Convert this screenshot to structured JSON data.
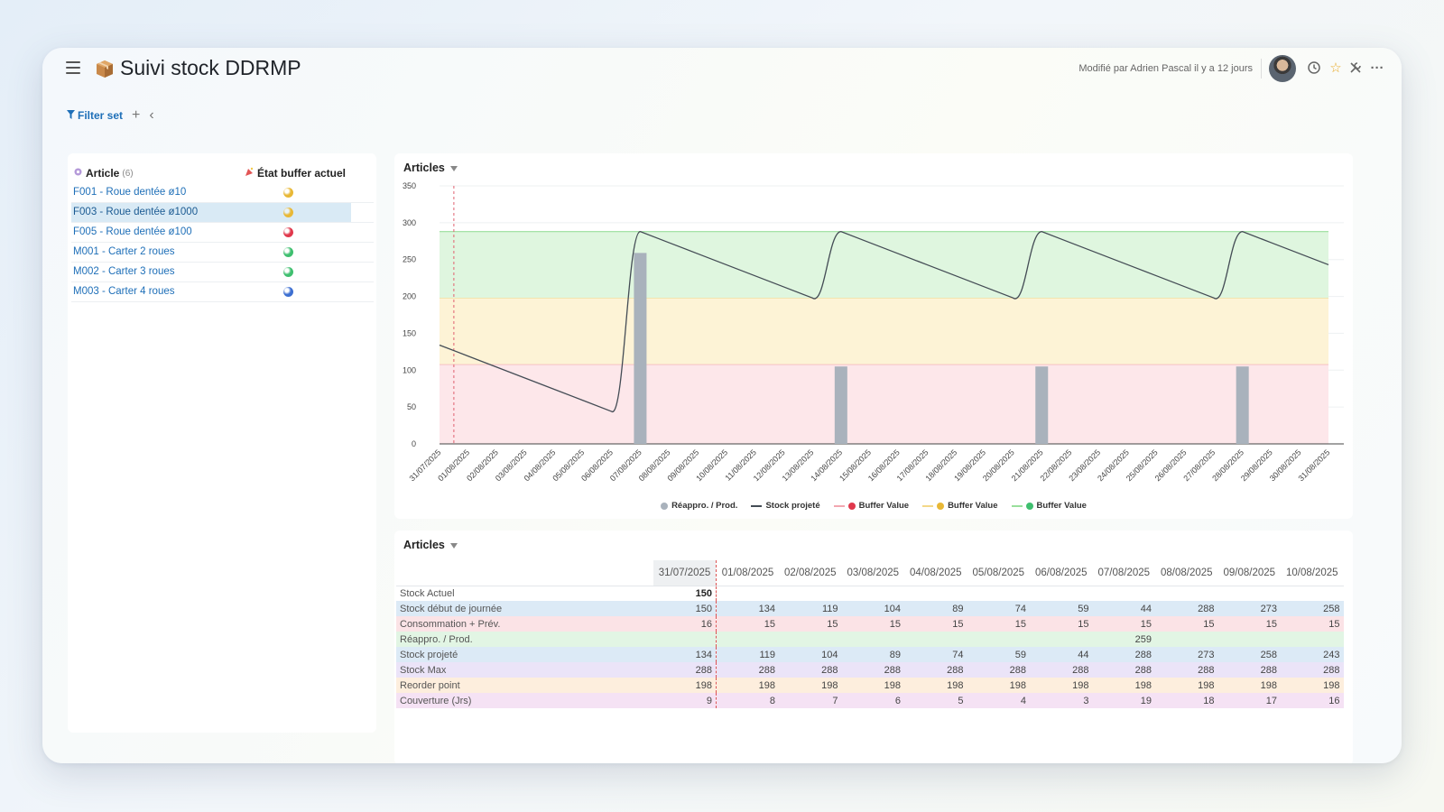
{
  "header": {
    "title": "Suivi stock DDRMP",
    "modified_text": "Modifié par Adrien Pascal il y a 12 jours"
  },
  "filterbar": {
    "label": "Filter set"
  },
  "articles_panel": {
    "col_article": "Article",
    "count": "(6)",
    "col_state": "État buffer actuel",
    "rows": [
      {
        "label": "F001 - Roue dentée ø10",
        "state_color": "#e8b836"
      },
      {
        "label": "F003 - Roue dentée ø1000",
        "state_color": "#e8b836"
      },
      {
        "label": "F005 - Roue dentée ø100",
        "state_color": "#e0384c"
      },
      {
        "label": "M001 - Carter 2 roues",
        "state_color": "#3fbf6f"
      },
      {
        "label": "M002 - Carter 3 roues",
        "state_color": "#3fbf6f"
      },
      {
        "label": "M003 - Carter 4 roues",
        "state_color": "#3d6fd1"
      }
    ]
  },
  "chart_panel": {
    "title": "Articles"
  },
  "table_panel": {
    "title": "Articles"
  },
  "legend": {
    "reappro": "Réappro. / Prod.",
    "stock": "Stock projeté",
    "buffer_red": "Buffer Value",
    "buffer_yellow": "Buffer Value",
    "buffer_green": "Buffer Value"
  },
  "chart_data": {
    "type": "bar",
    "title": "Articles",
    "ylim": [
      0,
      350
    ],
    "yticks": [
      0,
      50,
      100,
      150,
      200,
      250,
      300,
      350
    ],
    "categories": [
      "31/07/2025",
      "01/08/2025",
      "02/08/2025",
      "03/08/2025",
      "04/08/2025",
      "05/08/2025",
      "06/08/2025",
      "07/08/2025",
      "08/08/2025",
      "09/08/2025",
      "10/08/2025",
      "11/08/2025",
      "12/08/2025",
      "13/08/2025",
      "14/08/2025",
      "15/08/2025",
      "16/08/2025",
      "17/08/2025",
      "18/08/2025",
      "19/08/2025",
      "20/08/2025",
      "21/08/2025",
      "22/08/2025",
      "23/08/2025",
      "24/08/2025",
      "25/08/2025",
      "26/08/2025",
      "27/08/2025",
      "28/08/2025",
      "29/08/2025",
      "30/08/2025",
      "31/08/2025"
    ],
    "series": [
      {
        "name": "Réappro. / Prod.",
        "type": "bar",
        "color": "#a9b2bc",
        "values": [
          0,
          0,
          0,
          0,
          0,
          0,
          0,
          259,
          0,
          0,
          0,
          0,
          0,
          0,
          105,
          0,
          0,
          0,
          0,
          0,
          0,
          105,
          0,
          0,
          0,
          0,
          0,
          0,
          105,
          0,
          0,
          0
        ]
      },
      {
        "name": "Stock projeté",
        "type": "line",
        "color": "#444c55",
        "values": [
          134,
          119,
          104,
          89,
          74,
          59,
          44,
          288,
          273,
          258,
          243,
          228,
          213,
          198,
          288,
          273,
          258,
          243,
          228,
          213,
          198,
          288,
          273,
          258,
          243,
          228,
          213,
          198,
          288,
          273,
          258,
          243
        ]
      }
    ],
    "bands": [
      {
        "name": "Buffer Value",
        "from": 0,
        "to": 108,
        "color": "#fde7ea",
        "edge": "#f2a7b0"
      },
      {
        "name": "Buffer Value",
        "from": 108,
        "to": 198,
        "color": "#fdf3d6",
        "edge": "#f3d889"
      },
      {
        "name": "Buffer Value",
        "from": 198,
        "to": 288,
        "color": "#dff6df",
        "edge": "#9adf9c"
      }
    ],
    "today_index": 0.5
  },
  "table": {
    "dates": [
      "31/07/2025",
      "01/08/2025",
      "02/08/2025",
      "03/08/2025",
      "04/08/2025",
      "05/08/2025",
      "06/08/2025",
      "07/08/2025",
      "08/08/2025",
      "09/08/2025",
      "10/08/2025"
    ],
    "rows": [
      {
        "label": "Stock Actuel",
        "cls": "row-white",
        "values": [
          "150",
          "",
          "",
          "",
          "",
          "",
          "",
          "",
          "",
          "",
          ""
        ]
      },
      {
        "label": "Stock début de journée",
        "cls": "row-blue",
        "values": [
          "150",
          "134",
          "119",
          "104",
          "89",
          "74",
          "59",
          "44",
          "288",
          "273",
          "258"
        ]
      },
      {
        "label": "Consommation + Prév.",
        "cls": "row-red",
        "values": [
          "16",
          "15",
          "15",
          "15",
          "15",
          "15",
          "15",
          "15",
          "15",
          "15",
          "15"
        ]
      },
      {
        "label": "Réappro. / Prod.",
        "cls": "row-green",
        "values": [
          "",
          "",
          "",
          "",
          "",
          "",
          "",
          "259",
          "",
          "",
          ""
        ]
      },
      {
        "label": "Stock projeté",
        "cls": "row-blue",
        "values": [
          "134",
          "119",
          "104",
          "89",
          "74",
          "59",
          "44",
          "288",
          "273",
          "258",
          "243"
        ]
      },
      {
        "label": "Stock Max",
        "cls": "row-purple",
        "values": [
          "288",
          "288",
          "288",
          "288",
          "288",
          "288",
          "288",
          "288",
          "288",
          "288",
          "288"
        ]
      },
      {
        "label": "Reorder point",
        "cls": "row-orange",
        "values": [
          "198",
          "198",
          "198",
          "198",
          "198",
          "198",
          "198",
          "198",
          "198",
          "198",
          "198"
        ]
      },
      {
        "label": "Couverture (Jrs)",
        "cls": "row-pink",
        "values": [
          "9",
          "8",
          "7",
          "6",
          "5",
          "4",
          "3",
          "19",
          "18",
          "17",
          "16"
        ]
      }
    ]
  }
}
